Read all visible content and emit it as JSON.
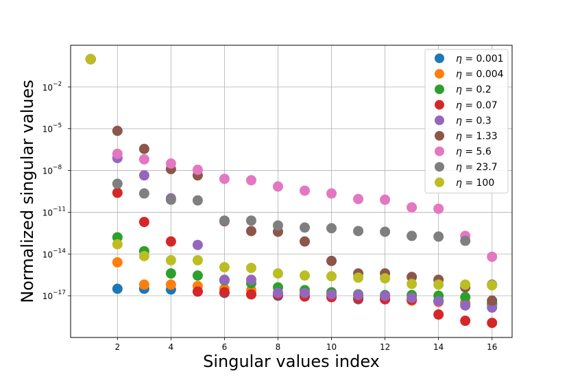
{
  "chart_data": {
    "type": "scatter",
    "title": "",
    "xlabel": "Singular values index",
    "ylabel": "Normalized singular values",
    "xscale": "linear",
    "yscale": "log",
    "xlim": [
      0.25,
      16.75
    ],
    "ylim_exp": [
      -20.0,
      1.0
    ],
    "grid": true,
    "legend_position": "top-right",
    "x_ticks": [
      2,
      4,
      6,
      8,
      10,
      12,
      14,
      16
    ],
    "x_tick_labels": [
      "2",
      "4",
      "6",
      "8",
      "10",
      "12",
      "14",
      "16"
    ],
    "y_ticks_exp": [
      -17,
      -14,
      -11,
      -8,
      -5,
      -2
    ],
    "y_tick_labels": [
      "10",
      "10",
      "10",
      "10",
      "10",
      "10"
    ],
    "y_tick_superscripts": [
      "−17",
      "−14",
      "−11",
      "−8",
      "−5",
      "−2"
    ],
    "x": [
      1,
      2,
      3,
      4,
      5,
      6,
      7,
      8,
      9,
      10,
      11,
      12,
      13,
      14,
      15,
      16
    ],
    "series": [
      {
        "name": "η = 0.001",
        "eta": "0.001",
        "color": "#1f77b4",
        "log10_values": [
          0,
          -16.5,
          -16.5,
          -16.55,
          -16.7,
          -16.8,
          -16.9,
          -17.0,
          -17.05,
          -17.1,
          -17.25,
          -17.25,
          -17.3,
          -17.35,
          -17.5,
          -17.65
        ]
      },
      {
        "name": "η = 0.004",
        "eta": "0.004",
        "color": "#ff7f0e",
        "log10_values": [
          0,
          -14.6,
          -16.2,
          -16.2,
          -16.3,
          -16.5,
          -16.6,
          -16.8,
          -16.9,
          -17.0,
          -17.05,
          -17.1,
          -17.35,
          -17.45,
          -17.55,
          -17.6
        ]
      },
      {
        "name": "η = 0.2",
        "eta": "0.2",
        "color": "#2ca02c",
        "log10_values": [
          0,
          -12.8,
          -13.8,
          -15.4,
          -15.55,
          -15.9,
          -16.1,
          -16.4,
          -16.6,
          -16.75,
          -16.9,
          -16.95,
          -16.95,
          -17.0,
          -17.1,
          -17.5
        ]
      },
      {
        "name": "η = 0.07",
        "eta": "0.07",
        "color": "#d62728",
        "log10_values": [
          0,
          -9.6,
          -11.7,
          -13.1,
          -16.7,
          -16.75,
          -16.9,
          -16.95,
          -17.05,
          -17.1,
          -17.2,
          -17.25,
          -17.3,
          -18.35,
          -18.8,
          -18.95
        ]
      },
      {
        "name": "η = 0.3",
        "eta": "0.3",
        "color": "#9467bd",
        "log10_values": [
          0,
          -7.1,
          -8.35,
          -10.0,
          -13.35,
          -15.85,
          -15.85,
          -16.8,
          -16.8,
          -16.9,
          -16.95,
          -17.0,
          -17.15,
          -17.4,
          -17.7,
          -17.85
        ]
      },
      {
        "name": "η = 1.33",
        "eta": "1.33",
        "color": "#8c564b",
        "log10_values": [
          0,
          -5.15,
          -6.45,
          -7.9,
          -8.35,
          -11.65,
          -12.35,
          -12.4,
          -13.1,
          -14.5,
          -15.4,
          -15.4,
          -15.65,
          -15.85,
          -16.4,
          -17.35
        ]
      },
      {
        "name": "η = 5.6",
        "eta": "5.6",
        "color": "#e377c2",
        "log10_values": [
          0,
          -6.8,
          -7.2,
          -7.5,
          -7.95,
          -8.6,
          -8.7,
          -9.15,
          -9.45,
          -9.65,
          -10.05,
          -10.1,
          -10.65,
          -10.75,
          -12.7,
          -14.2
        ]
      },
      {
        "name": "η = 23.7",
        "eta": "23.7",
        "color": "#7f7f7f",
        "log10_values": [
          0,
          -8.95,
          -9.65,
          -10.1,
          -10.15,
          -11.6,
          -11.6,
          -11.95,
          -12.1,
          -12.15,
          -12.35,
          -12.4,
          -12.7,
          -12.75,
          -13.05,
          -16.2
        ]
      },
      {
        "name": "η = 100",
        "eta": "100",
        "color": "#bcbd22",
        "log10_values": [
          0,
          -13.3,
          -14.15,
          -14.45,
          -14.45,
          -14.95,
          -15.0,
          -15.4,
          -15.55,
          -15.6,
          -15.7,
          -15.75,
          -16.15,
          -16.2,
          -16.2,
          -16.25
        ]
      }
    ]
  }
}
